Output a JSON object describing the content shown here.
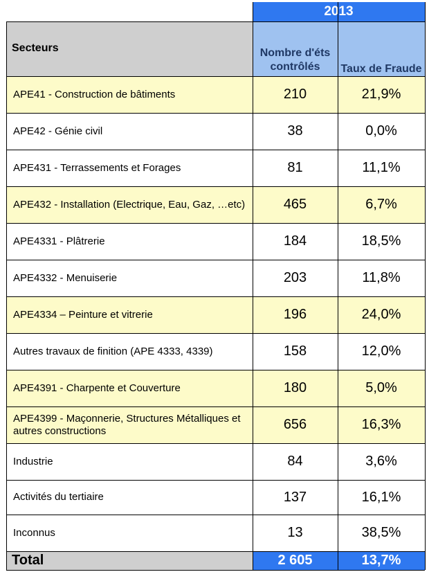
{
  "year": "2013",
  "header": {
    "sectors": "Secteurs",
    "count": "Nombre d'éts contrôlés",
    "rate": "Taux de Fraude"
  },
  "rows": [
    {
      "sector": "APE41 - Construction de bâtiments",
      "count": "210",
      "rate": "21,9%"
    },
    {
      "sector": "APE42 - Génie civil",
      "count": "38",
      "rate": "0,0%"
    },
    {
      "sector": "APE431 - Terrassements et Forages",
      "count": "81",
      "rate": "11,1%"
    },
    {
      "sector": "APE432 - Installation (Electrique, Eau, Gaz, …etc)",
      "count": "465",
      "rate": "6,7%"
    },
    {
      "sector": "APE4331 - Plâtrerie",
      "count": "184",
      "rate": "18,5%"
    },
    {
      "sector": "APE4332 - Menuiserie",
      "count": "203",
      "rate": "11,8%"
    },
    {
      "sector": "APE4334 – Peinture et vitrerie",
      "count": "196",
      "rate": "24,0%"
    },
    {
      "sector": "Autres travaux de finition (APE 4333, 4339)",
      "count": "158",
      "rate": "12,0%"
    },
    {
      "sector": "APE4391 - Charpente et Couverture",
      "count": "180",
      "rate": "5,0%"
    },
    {
      "sector": "APE4399 - Maçonnerie, Structures Métalliques et autres constructions",
      "count": "656",
      "rate": "16,3%"
    },
    {
      "sector": "Industrie",
      "count": "84",
      "rate": "3,6%"
    },
    {
      "sector": "Activités du tertiaire",
      "count": "137",
      "rate": "16,1%"
    },
    {
      "sector": "Inconnus",
      "count": "13",
      "rate": "38,5%"
    }
  ],
  "total": {
    "label": "Total",
    "count": "2 605",
    "rate": "13,7%"
  },
  "colors": {
    "highlight": "#fdfbc9",
    "header_gray": "#cfcfcf",
    "header_blue": "#9fc2f0",
    "accent_blue": "#2f78f0"
  }
}
